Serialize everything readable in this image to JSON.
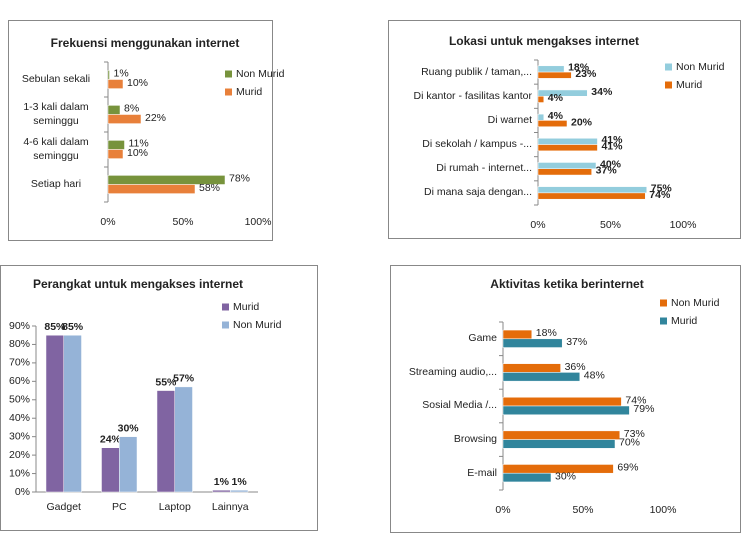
{
  "chart_data": [
    {
      "type": "barh",
      "title": "Frekuensi menggunakan internet",
      "categories": [
        "Sebulan sekali",
        "1-3 kali dalam seminggu",
        "4-6 kali dalam seminggu",
        "Setiap hari"
      ],
      "series": [
        {
          "name": "Non Murid",
          "color": "#77933c",
          "values": [
            1,
            8,
            11,
            78
          ],
          "value_labels": [
            "1%",
            "8%",
            "11%",
            "78%"
          ]
        },
        {
          "name": "Murid",
          "color": "#e8803a",
          "values": [
            10,
            22,
            10,
            58
          ],
          "value_labels": [
            "10%",
            "22%",
            "10%",
            "58%"
          ]
        }
      ],
      "xlim": [
        0,
        100
      ],
      "xticks": [
        {
          "value": 0,
          "label": "0%"
        },
        {
          "value": 50,
          "label": "50%"
        },
        {
          "value": 100,
          "label": "100%"
        }
      ]
    },
    {
      "type": "barh",
      "title": "Lokasi untuk mengakses internet",
      "categories": [
        "Ruang publik / taman,...",
        "Di kantor - fasilitas kantor",
        "Di warnet",
        "Di sekolah / kampus -...",
        "Di rumah - internet...",
        "Di mana saja dengan..."
      ],
      "series": [
        {
          "name": "Non Murid",
          "color": "#93cddd",
          "values": [
            18,
            34,
            4,
            41,
            40,
            75
          ],
          "value_labels": [
            "18%",
            "34%",
            "4%",
            "41%",
            "40%",
            "75%"
          ]
        },
        {
          "name": "Murid",
          "color": "#e46c0a",
          "values": [
            23,
            4,
            20,
            41,
            37,
            74
          ],
          "value_labels": [
            "23%",
            "4%",
            "20%",
            "41%",
            "37%",
            "74%"
          ]
        }
      ],
      "xlim": [
        0,
        100
      ],
      "xticks": [
        {
          "value": 0,
          "label": "0%"
        },
        {
          "value": 50,
          "label": "50%"
        },
        {
          "value": 100,
          "label": "100%"
        }
      ]
    },
    {
      "type": "bar",
      "title": "Perangkat untuk mengakses internet",
      "categories": [
        "Gadget",
        "PC",
        "Laptop",
        "Lainnya"
      ],
      "series": [
        {
          "name": "Murid",
          "color": "#8064a2",
          "values": [
            85,
            24,
            55,
            1
          ],
          "value_labels": [
            "85%",
            "24%",
            "55%",
            "1%"
          ]
        },
        {
          "name": "Non Murid",
          "color": "#95b3d7",
          "values": [
            85,
            30,
            57,
            1
          ],
          "value_labels": [
            "85%",
            "30%",
            "57%",
            "1%"
          ]
        }
      ],
      "ylim": [
        0,
        90
      ],
      "yticks": [
        {
          "value": 0,
          "label": "0%"
        },
        {
          "value": 10,
          "label": "10%"
        },
        {
          "value": 20,
          "label": "20%"
        },
        {
          "value": 30,
          "label": "30%"
        },
        {
          "value": 40,
          "label": "40%"
        },
        {
          "value": 50,
          "label": "50%"
        },
        {
          "value": 60,
          "label": "60%"
        },
        {
          "value": 70,
          "label": "70%"
        },
        {
          "value": 80,
          "label": "80%"
        },
        {
          "value": 90,
          "label": "90%"
        }
      ]
    },
    {
      "type": "barh",
      "title": "Aktivitas ketika berinternet",
      "categories": [
        "Game",
        "Streaming audio,...",
        "Sosial Media /...",
        "Browsing",
        "E-mail"
      ],
      "series": [
        {
          "name": "Non Murid",
          "color": "#e46c0a",
          "values": [
            18,
            36,
            74,
            73,
            69
          ],
          "value_labels": [
            "18%",
            "36%",
            "74%",
            "73%",
            "69%"
          ]
        },
        {
          "name": "Murid",
          "color": "#31859c",
          "values": [
            37,
            48,
            79,
            70,
            30
          ],
          "value_labels": [
            "37%",
            "48%",
            "79%",
            "70%",
            "30%"
          ]
        }
      ],
      "xlim": [
        0,
        100
      ],
      "xticks": [
        {
          "value": 0,
          "label": "0%"
        },
        {
          "value": 50,
          "label": "50%"
        },
        {
          "value": 100,
          "label": "100%"
        }
      ]
    }
  ]
}
